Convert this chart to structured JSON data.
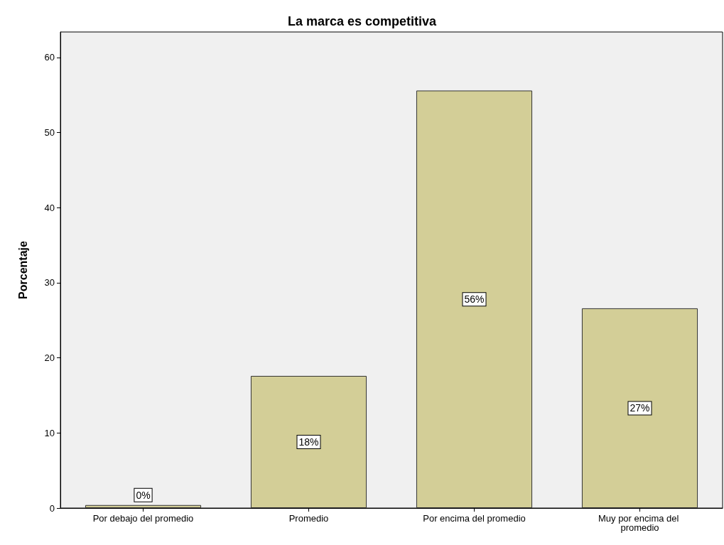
{
  "chart_data": {
    "type": "bar",
    "title": "La marca es competitiva",
    "ylabel": "Porcentaje",
    "categories": [
      "Por debajo del promedio",
      "Promedio",
      "Por encima del promedio",
      "Muy por encima del promedio"
    ],
    "values": [
      0.4,
      17.6,
      55.6,
      26.6
    ],
    "value_labels": [
      "0%",
      "18%",
      "56%",
      "27%"
    ],
    "color": "#d3ce97",
    "ylim": [
      0,
      63.4
    ],
    "yticks": [
      0,
      10,
      20,
      30,
      40,
      50,
      60
    ],
    "grid": false
  }
}
